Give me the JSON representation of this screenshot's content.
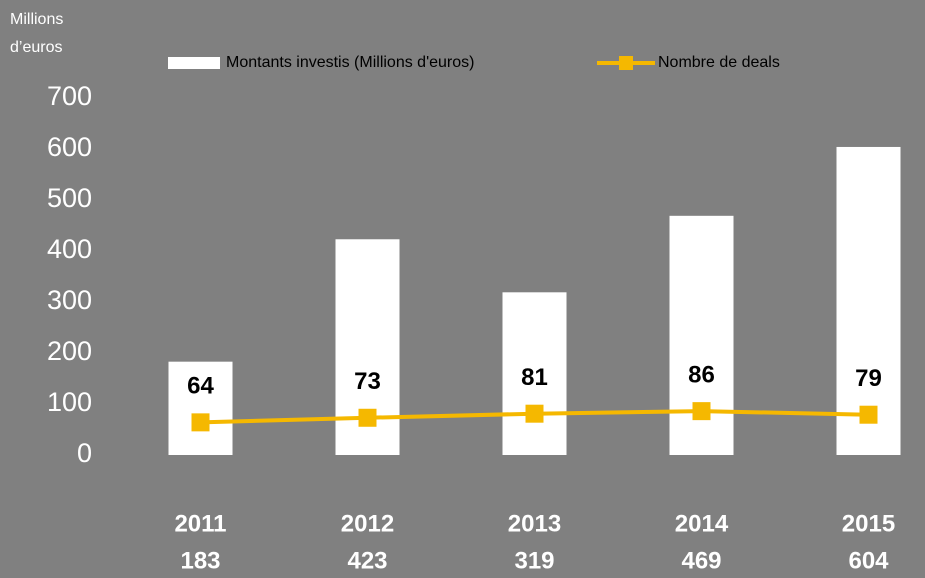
{
  "chart_data": {
    "type": "bar",
    "ylabel": [
      "Millions",
      "d’euros"
    ],
    "categories": [
      "2011",
      "2012",
      "2013",
      "2014",
      "2015"
    ],
    "series": [
      {
        "name": "Montants investis (Millions d'euros)",
        "type": "bar",
        "color": "#ffffff",
        "values": [
          183,
          423,
          319,
          469,
          604
        ]
      },
      {
        "name": "Nombre de deals",
        "type": "line",
        "color": "#f5b800",
        "values": [
          64,
          73,
          81,
          86,
          79
        ]
      }
    ],
    "ylim": [
      0,
      700
    ],
    "yticks": [
      0,
      100,
      200,
      300,
      400,
      500,
      600,
      700
    ],
    "grid": false
  }
}
